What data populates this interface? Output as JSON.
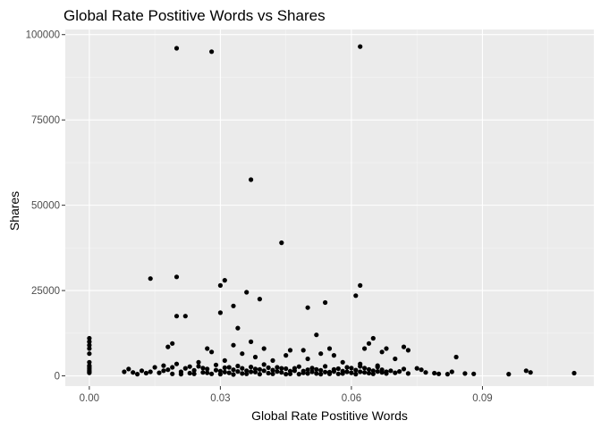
{
  "chart_data": {
    "type": "scatter",
    "title": "Global Rate Postitive Words vs Shares",
    "xlabel": "Global Rate Postitive Words",
    "ylabel": "Shares",
    "xlim": [
      -0.0055,
      0.1155
    ],
    "ylim": [
      -3000,
      101500
    ],
    "x_ticks": [
      0.0,
      0.03,
      0.06,
      0.09
    ],
    "x_tick_labels": [
      "0.00",
      "0.03",
      "0.06",
      "0.09"
    ],
    "x_minor_ticks": [
      0.015,
      0.045,
      0.075,
      0.105
    ],
    "y_ticks": [
      0,
      25000,
      50000,
      75000,
      100000
    ],
    "y_tick_labels": [
      "0",
      "25000",
      "50000",
      "75000",
      "100000"
    ],
    "y_minor_ticks": [
      12500,
      37500,
      62500,
      87500
    ],
    "grid": true,
    "colors": {
      "panel": "#ebebeb",
      "grid_major": "#ffffff",
      "grid_minor": "#f5f5f5",
      "point": "#000000",
      "tick": "#333333"
    },
    "points": [
      [
        0.02,
        96000
      ],
      [
        0.028,
        95000
      ],
      [
        0.062,
        96500
      ],
      [
        0.037,
        57500
      ],
      [
        0.044,
        39000
      ],
      [
        0.014,
        28500
      ],
      [
        0.02,
        29000
      ],
      [
        0.031,
        28000
      ],
      [
        0.03,
        26500
      ],
      [
        0.062,
        26500
      ],
      [
        0.036,
        24500
      ],
      [
        0.061,
        23500
      ],
      [
        0.039,
        22500
      ],
      [
        0.054,
        21500
      ],
      [
        0.033,
        20500
      ],
      [
        0.05,
        20000
      ],
      [
        0.03,
        18500
      ],
      [
        0.02,
        17500
      ],
      [
        0.022,
        17500
      ],
      [
        0.034,
        14000
      ],
      [
        0.052,
        12000
      ],
      [
        0.0,
        11000
      ],
      [
        0.0,
        10000
      ],
      [
        0.0,
        9000
      ],
      [
        0.0,
        8000
      ],
      [
        0.0,
        6500
      ],
      [
        0.0,
        4000
      ],
      [
        0.0,
        3000
      ],
      [
        0.0,
        2500
      ],
      [
        0.0,
        2000
      ],
      [
        0.0,
        1500
      ],
      [
        0.0,
        1200
      ],
      [
        0.0,
        900
      ],
      [
        0.037,
        10000
      ],
      [
        0.019,
        9500
      ],
      [
        0.018,
        8500
      ],
      [
        0.065,
        11000
      ],
      [
        0.064,
        9500
      ],
      [
        0.033,
        9000
      ],
      [
        0.027,
        8000
      ],
      [
        0.04,
        8000
      ],
      [
        0.046,
        7500
      ],
      [
        0.055,
        8000
      ],
      [
        0.049,
        7500
      ],
      [
        0.063,
        8000
      ],
      [
        0.068,
        8000
      ],
      [
        0.072,
        8500
      ],
      [
        0.073,
        7500
      ],
      [
        0.067,
        7000
      ],
      [
        0.07,
        5000
      ],
      [
        0.084,
        5500
      ],
      [
        0.053,
        6500
      ],
      [
        0.056,
        6000
      ],
      [
        0.035,
        6500
      ],
      [
        0.028,
        7000
      ],
      [
        0.045,
        6000
      ],
      [
        0.038,
        5500
      ],
      [
        0.042,
        4500
      ],
      [
        0.031,
        4500
      ],
      [
        0.025,
        4000
      ],
      [
        0.05,
        5000
      ],
      [
        0.058,
        4000
      ],
      [
        0.062,
        3500
      ],
      [
        0.066,
        3000
      ],
      [
        0.008,
        1200
      ],
      [
        0.009,
        2000
      ],
      [
        0.01,
        1000
      ],
      [
        0.011,
        500
      ],
      [
        0.012,
        1500
      ],
      [
        0.013,
        800
      ],
      [
        0.014,
        1200
      ],
      [
        0.015,
        2500
      ],
      [
        0.016,
        900
      ],
      [
        0.017,
        3000
      ],
      [
        0.018,
        1800
      ],
      [
        0.019,
        600
      ],
      [
        0.02,
        3500
      ],
      [
        0.021,
        1200
      ],
      [
        0.022,
        2200
      ],
      [
        0.023,
        800
      ],
      [
        0.024,
        1600
      ],
      [
        0.025,
        2800
      ],
      [
        0.026,
        1000
      ],
      [
        0.027,
        2000
      ],
      [
        0.028,
        600
      ],
      [
        0.029,
        3200
      ],
      [
        0.03,
        1400
      ],
      [
        0.031,
        2400
      ],
      [
        0.032,
        900
      ],
      [
        0.033,
        1800
      ],
      [
        0.034,
        2900
      ],
      [
        0.035,
        700
      ],
      [
        0.036,
        1500
      ],
      [
        0.037,
        2600
      ],
      [
        0.038,
        1100
      ],
      [
        0.039,
        1900
      ],
      [
        0.04,
        3300
      ],
      [
        0.041,
        800
      ],
      [
        0.042,
        1700
      ],
      [
        0.043,
        2500
      ],
      [
        0.044,
        1000
      ],
      [
        0.045,
        2100
      ],
      [
        0.046,
        600
      ],
      [
        0.047,
        1500
      ],
      [
        0.048,
        2700
      ],
      [
        0.049,
        900
      ],
      [
        0.05,
        1800
      ],
      [
        0.051,
        2300
      ],
      [
        0.052,
        700
      ],
      [
        0.053,
        1600
      ],
      [
        0.054,
        2800
      ],
      [
        0.055,
        1100
      ],
      [
        0.056,
        1900
      ],
      [
        0.057,
        600
      ],
      [
        0.058,
        1400
      ],
      [
        0.059,
        2500
      ],
      [
        0.06,
        900
      ],
      [
        0.061,
        1700
      ],
      [
        0.062,
        1200
      ],
      [
        0.063,
        2300
      ],
      [
        0.064,
        800
      ],
      [
        0.065,
        1500
      ],
      [
        0.066,
        2600
      ],
      [
        0.067,
        1000
      ],
      [
        0.068,
        700
      ],
      [
        0.017,
        1500
      ],
      [
        0.019,
        2500
      ],
      [
        0.021,
        500
      ],
      [
        0.023,
        2700
      ],
      [
        0.024,
        600
      ],
      [
        0.026,
        2300
      ],
      [
        0.027,
        900
      ],
      [
        0.029,
        1700
      ],
      [
        0.03,
        500
      ],
      [
        0.031,
        1100
      ],
      [
        0.032,
        2500
      ],
      [
        0.033,
        400
      ],
      [
        0.034,
        1300
      ],
      [
        0.035,
        2200
      ],
      [
        0.036,
        600
      ],
      [
        0.037,
        1200
      ],
      [
        0.038,
        2000
      ],
      [
        0.039,
        500
      ],
      [
        0.04,
        1500
      ],
      [
        0.041,
        2400
      ],
      [
        0.042,
        600
      ],
      [
        0.043,
        1300
      ],
      [
        0.044,
        2200
      ],
      [
        0.045,
        500
      ],
      [
        0.046,
        1400
      ],
      [
        0.047,
        2200
      ],
      [
        0.048,
        500
      ],
      [
        0.049,
        1400
      ],
      [
        0.05,
        700
      ],
      [
        0.051,
        1200
      ],
      [
        0.052,
        1900
      ],
      [
        0.053,
        500
      ],
      [
        0.054,
        1100
      ],
      [
        0.055,
        600
      ],
      [
        0.056,
        1300
      ],
      [
        0.057,
        2100
      ],
      [
        0.058,
        700
      ],
      [
        0.059,
        1200
      ],
      [
        0.06,
        2300
      ],
      [
        0.061,
        500
      ],
      [
        0.062,
        2800
      ],
      [
        0.063,
        1000
      ],
      [
        0.064,
        1900
      ],
      [
        0.065,
        600
      ],
      [
        0.066,
        1300
      ],
      [
        0.067,
        1800
      ],
      [
        0.068,
        1200
      ],
      [
        0.069,
        1500
      ],
      [
        0.07,
        900
      ],
      [
        0.071,
        1300
      ],
      [
        0.072,
        2000
      ],
      [
        0.073,
        700
      ],
      [
        0.075,
        2200
      ],
      [
        0.076,
        1800
      ],
      [
        0.077,
        1000
      ],
      [
        0.079,
        800
      ],
      [
        0.08,
        600
      ],
      [
        0.082,
        500
      ],
      [
        0.083,
        1200
      ],
      [
        0.086,
        700
      ],
      [
        0.088,
        600
      ],
      [
        0.096,
        500
      ],
      [
        0.1,
        1500
      ],
      [
        0.101,
        1000
      ],
      [
        0.111,
        800
      ]
    ]
  }
}
